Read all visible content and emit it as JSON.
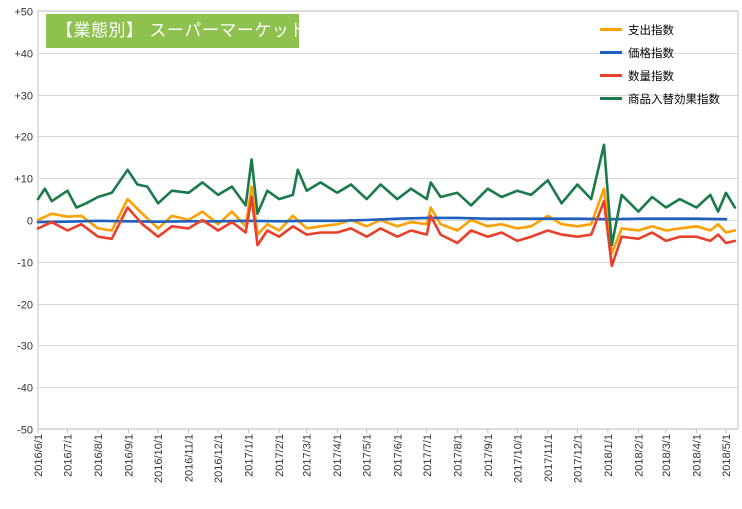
{
  "badge": {
    "title": "【業態別】 スーパーマーケット"
  },
  "chart_data": {
    "type": "line",
    "title": "【業態別】 スーパーマーケット",
    "ylim": [
      -50,
      50
    ],
    "yticks": [
      {
        "value": 50,
        "label": "+50"
      },
      {
        "value": 40,
        "label": "+40"
      },
      {
        "value": 30,
        "label": "+30"
      },
      {
        "value": 20,
        "label": "+20"
      },
      {
        "value": 10,
        "label": "+10"
      },
      {
        "value": 0,
        "label": "0"
      },
      {
        "value": -10,
        "label": "-10"
      },
      {
        "value": -20,
        "label": "-20"
      },
      {
        "value": -30,
        "label": "-30"
      },
      {
        "value": -40,
        "label": "-40"
      },
      {
        "value": -50,
        "label": "-50"
      }
    ],
    "x_start": "2016/6/1",
    "x_end": "2018/5/1",
    "x_ticks": [
      "2016/6/1",
      "2016/7/1",
      "2016/8/1",
      "2016/9/1",
      "2016/10/1",
      "2016/11/1",
      "2016/12/1",
      "2017/1/1",
      "2017/2/1",
      "2017/3/1",
      "2017/4/1",
      "2017/5/1",
      "2017/6/1",
      "2017/7/1",
      "2017/8/1",
      "2017/9/1",
      "2017/10/1",
      "2017/11/1",
      "2017/12/1",
      "2018/1/1",
      "2018/2/1",
      "2018/3/1",
      "2018/4/1",
      "2018/5/1"
    ],
    "grid": true,
    "legend_position": "top-right",
    "series": [
      {
        "name": "支出指数",
        "color": "#ffa000",
        "points": [
          [
            "2016/6/1",
            0
          ],
          [
            "2016/6/15",
            1.5
          ],
          [
            "2016/7/1",
            0.8
          ],
          [
            "2016/7/15",
            1
          ],
          [
            "2016/8/1",
            -2
          ],
          [
            "2016/8/15",
            -2.5
          ],
          [
            "2016/8/31",
            5
          ],
          [
            "2016/9/15",
            1.5
          ],
          [
            "2016/10/1",
            -2
          ],
          [
            "2016/10/15",
            1
          ],
          [
            "2016/11/1",
            0
          ],
          [
            "2016/11/15",
            2
          ],
          [
            "2016/12/1",
            -1
          ],
          [
            "2016/12/15",
            2
          ],
          [
            "2016/12/29",
            -1.5
          ],
          [
            "2017/1/4",
            8
          ],
          [
            "2017/1/10",
            -3.5
          ],
          [
            "2017/1/20",
            -1
          ],
          [
            "2017/2/1",
            -2.5
          ],
          [
            "2017/2/15",
            1
          ],
          [
            "2017/3/1",
            -2
          ],
          [
            "2017/3/15",
            -1.5
          ],
          [
            "2017/4/1",
            -1
          ],
          [
            "2017/4/15",
            0
          ],
          [
            "2017/5/1",
            -1.5
          ],
          [
            "2017/5/15",
            0
          ],
          [
            "2017/6/1",
            -1.5
          ],
          [
            "2017/6/15",
            -0.5
          ],
          [
            "2017/7/1",
            -1
          ],
          [
            "2017/7/5",
            3
          ],
          [
            "2017/7/15",
            -1
          ],
          [
            "2017/8/1",
            -2.5
          ],
          [
            "2017/8/15",
            0
          ],
          [
            "2017/9/1",
            -1.5
          ],
          [
            "2017/9/15",
            -1
          ],
          [
            "2017/10/1",
            -2
          ],
          [
            "2017/10/15",
            -1.5
          ],
          [
            "2017/11/1",
            1
          ],
          [
            "2017/11/15",
            -1
          ],
          [
            "2017/12/1",
            -1.5
          ],
          [
            "2017/12/15",
            -1
          ],
          [
            "2017/12/28",
            7.5
          ],
          [
            "2018/1/5",
            -8
          ],
          [
            "2018/1/15",
            -2
          ],
          [
            "2018/2/1",
            -2.5
          ],
          [
            "2018/2/15",
            -1.5
          ],
          [
            "2018/3/1",
            -2.5
          ],
          [
            "2018/3/15",
            -2
          ],
          [
            "2018/4/1",
            -1.5
          ],
          [
            "2018/4/15",
            -2.5
          ],
          [
            "2018/4/23",
            -1
          ],
          [
            "2018/5/1",
            -3
          ],
          [
            "2018/5/10",
            -2.5
          ]
        ]
      },
      {
        "name": "価格指数",
        "color": "#1f5fbf",
        "points": [
          [
            "2016/6/1",
            -0.5
          ],
          [
            "2016/7/1",
            -0.4
          ],
          [
            "2016/8/1",
            -0.2
          ],
          [
            "2016/9/1",
            -0.3
          ],
          [
            "2016/10/1",
            -0.4
          ],
          [
            "2016/11/1",
            -0.3
          ],
          [
            "2016/12/1",
            -0.3
          ],
          [
            "2017/1/1",
            -0.2
          ],
          [
            "2017/2/1",
            -0.3
          ],
          [
            "2017/3/1",
            -0.2
          ],
          [
            "2017/4/1",
            -0.2
          ],
          [
            "2017/5/1",
            0
          ],
          [
            "2017/6/1",
            0.3
          ],
          [
            "2017/7/1",
            0.5
          ],
          [
            "2017/8/1",
            0.5
          ],
          [
            "2017/9/1",
            0.3
          ],
          [
            "2017/10/1",
            0.3
          ],
          [
            "2017/11/1",
            0.3
          ],
          [
            "2017/12/1",
            0.3
          ],
          [
            "2018/1/1",
            0.2
          ],
          [
            "2018/2/1",
            0.3
          ],
          [
            "2018/3/1",
            0.3
          ],
          [
            "2018/4/1",
            0.3
          ],
          [
            "2018/5/1",
            0.2
          ]
        ]
      },
      {
        "name": "数量指数",
        "color": "#e8402a",
        "points": [
          [
            "2016/6/1",
            -2
          ],
          [
            "2016/6/15",
            -0.5
          ],
          [
            "2016/7/1",
            -2.5
          ],
          [
            "2016/7/15",
            -1
          ],
          [
            "2016/8/1",
            -4
          ],
          [
            "2016/8/15",
            -4.5
          ],
          [
            "2016/8/31",
            3
          ],
          [
            "2016/9/15",
            -1
          ],
          [
            "2016/10/1",
            -4
          ],
          [
            "2016/10/15",
            -1.5
          ],
          [
            "2016/11/1",
            -2
          ],
          [
            "2016/11/15",
            0
          ],
          [
            "2016/12/1",
            -2.5
          ],
          [
            "2016/12/15",
            -0.5
          ],
          [
            "2016/12/29",
            -3
          ],
          [
            "2017/1/4",
            5.5
          ],
          [
            "2017/1/10",
            -6
          ],
          [
            "2017/1/20",
            -2.5
          ],
          [
            "2017/2/1",
            -4
          ],
          [
            "2017/2/15",
            -1.5
          ],
          [
            "2017/3/1",
            -3.5
          ],
          [
            "2017/3/15",
            -3
          ],
          [
            "2017/4/1",
            -3
          ],
          [
            "2017/4/15",
            -2
          ],
          [
            "2017/5/1",
            -4
          ],
          [
            "2017/5/15",
            -2
          ],
          [
            "2017/6/1",
            -4
          ],
          [
            "2017/6/15",
            -2.5
          ],
          [
            "2017/7/1",
            -3.5
          ],
          [
            "2017/7/5",
            1
          ],
          [
            "2017/7/15",
            -3.5
          ],
          [
            "2017/8/1",
            -5.5
          ],
          [
            "2017/8/15",
            -2.5
          ],
          [
            "2017/9/1",
            -4
          ],
          [
            "2017/9/15",
            -3
          ],
          [
            "2017/10/1",
            -5
          ],
          [
            "2017/10/15",
            -4
          ],
          [
            "2017/11/1",
            -2.5
          ],
          [
            "2017/11/15",
            -3.5
          ],
          [
            "2017/12/1",
            -4
          ],
          [
            "2017/12/15",
            -3.5
          ],
          [
            "2017/12/28",
            4.5
          ],
          [
            "2018/1/5",
            -11
          ],
          [
            "2018/1/15",
            -4
          ],
          [
            "2018/2/1",
            -4.5
          ],
          [
            "2018/2/15",
            -3
          ],
          [
            "2018/3/1",
            -5
          ],
          [
            "2018/3/15",
            -4
          ],
          [
            "2018/4/1",
            -4
          ],
          [
            "2018/4/15",
            -5
          ],
          [
            "2018/4/23",
            -3.5
          ],
          [
            "2018/5/1",
            -5.5
          ],
          [
            "2018/5/10",
            -5
          ]
        ]
      },
      {
        "name": "商品入替効果指数",
        "color": "#1a7a4a",
        "points": [
          [
            "2016/6/1",
            5
          ],
          [
            "2016/6/8",
            7.5
          ],
          [
            "2016/6/15",
            4.5
          ],
          [
            "2016/7/1",
            7
          ],
          [
            "2016/7/10",
            3
          ],
          [
            "2016/7/20",
            4
          ],
          [
            "2016/8/1",
            5.5
          ],
          [
            "2016/8/15",
            6.5
          ],
          [
            "2016/8/31",
            12
          ],
          [
            "2016/9/10",
            8.5
          ],
          [
            "2016/9/20",
            8
          ],
          [
            "2016/10/1",
            4
          ],
          [
            "2016/10/15",
            7
          ],
          [
            "2016/11/1",
            6.5
          ],
          [
            "2016/11/15",
            9
          ],
          [
            "2016/12/1",
            6
          ],
          [
            "2016/12/15",
            8
          ],
          [
            "2016/12/29",
            3.5
          ],
          [
            "2017/1/4",
            14.5
          ],
          [
            "2017/1/10",
            1.5
          ],
          [
            "2017/1/20",
            7
          ],
          [
            "2017/2/1",
            5
          ],
          [
            "2017/2/15",
            6
          ],
          [
            "2017/2/20",
            12
          ],
          [
            "2017/3/1",
            7
          ],
          [
            "2017/3/15",
            9
          ],
          [
            "2017/4/1",
            6.5
          ],
          [
            "2017/4/15",
            8.5
          ],
          [
            "2017/5/1",
            5
          ],
          [
            "2017/5/15",
            8.5
          ],
          [
            "2017/6/1",
            5
          ],
          [
            "2017/6/15",
            7.5
          ],
          [
            "2017/7/1",
            5
          ],
          [
            "2017/7/5",
            9
          ],
          [
            "2017/7/15",
            5.5
          ],
          [
            "2017/8/1",
            6.5
          ],
          [
            "2017/8/15",
            3.5
          ],
          [
            "2017/9/1",
            7.5
          ],
          [
            "2017/9/15",
            5.5
          ],
          [
            "2017/10/1",
            7
          ],
          [
            "2017/10/15",
            6
          ],
          [
            "2017/11/1",
            9.5
          ],
          [
            "2017/11/15",
            4
          ],
          [
            "2017/12/1",
            8.5
          ],
          [
            "2017/12/15",
            5
          ],
          [
            "2017/12/28",
            18
          ],
          [
            "2018/1/5",
            -6
          ],
          [
            "2018/1/15",
            6
          ],
          [
            "2018/2/1",
            2
          ],
          [
            "2018/2/15",
            5.5
          ],
          [
            "2018/3/1",
            3
          ],
          [
            "2018/3/15",
            5
          ],
          [
            "2018/4/1",
            3
          ],
          [
            "2018/4/15",
            6
          ],
          [
            "2018/4/23",
            2
          ],
          [
            "2018/5/1",
            6.5
          ],
          [
            "2018/5/10",
            3
          ]
        ]
      }
    ]
  }
}
